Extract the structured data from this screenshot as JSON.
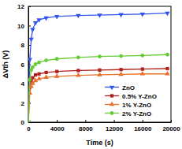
{
  "chart_data": {
    "type": "line",
    "x_label": "Time (s)",
    "y_label": "ΔVth (V)",
    "x": [
      0,
      200,
      400,
      600,
      1000,
      1500,
      2500,
      4000,
      7000,
      10000,
      13000,
      16000,
      19500
    ],
    "xlim": [
      0,
      20000
    ],
    "xticks": [
      0,
      4000,
      8000,
      12000,
      16000,
      20000
    ],
    "ylim": [
      0,
      12
    ],
    "yticks": [
      0,
      2,
      4,
      6,
      8,
      10,
      12
    ],
    "legend": "lower right",
    "series": [
      {
        "name": "ZnO",
        "color": "#3355ee",
        "marker": "triangle-down",
        "values": [
          0,
          6.5,
          8.6,
          9.6,
          10.3,
          10.6,
          10.8,
          10.95,
          11.05,
          11.1,
          11.15,
          11.2,
          11.3
        ]
      },
      {
        "name": "0.5% Y-ZnO",
        "color": "#b0201c",
        "marker": "square",
        "values": [
          0,
          3.6,
          4.3,
          4.6,
          4.9,
          5.0,
          5.15,
          5.25,
          5.35,
          5.4,
          5.45,
          5.5,
          5.55
        ]
      },
      {
        "name": "1% Y-ZnO",
        "color": "#e8702a",
        "marker": "triangle-up",
        "values": [
          0,
          3.0,
          3.7,
          4.0,
          4.3,
          4.5,
          4.65,
          4.75,
          4.85,
          4.9,
          4.95,
          5.0,
          5.0
        ]
      },
      {
        "name": "2% Y-ZnO",
        "color": "#66cc33",
        "marker": "circle",
        "values": [
          0,
          4.4,
          5.4,
          5.7,
          6.0,
          6.2,
          6.4,
          6.55,
          6.7,
          6.8,
          6.85,
          6.9,
          7.0
        ]
      }
    ]
  }
}
